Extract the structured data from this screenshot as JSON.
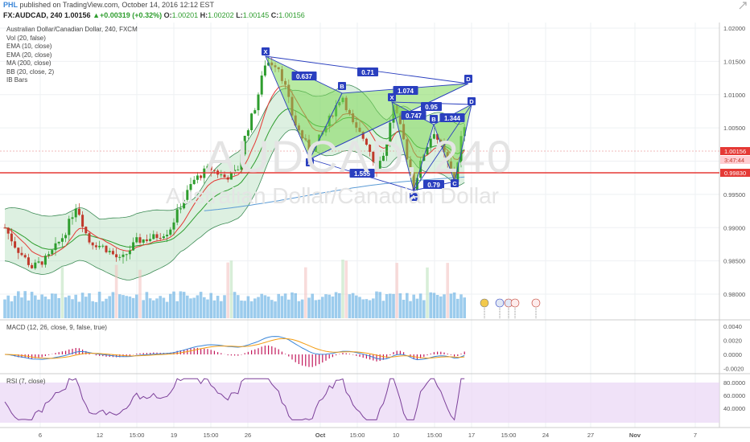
{
  "header": {
    "brand": "PHL",
    "published": " published on TradingView.com, October 14, 2016 12:12 EST",
    "symbol": "FX:AUDCAD, 240",
    "price": "1.00156",
    "change": "+0.00319 (+0.32%)",
    "o_label": "O:",
    "o_val": "1.00201",
    "h_label": "H:",
    "h_val": "1.00202",
    "l_label": "L:",
    "l_val": "1.00145",
    "c_label": "C:",
    "c_val": "1.00156"
  },
  "legend": {
    "title": "Australian Dollar/Canadian Dollar, 240, FXCM",
    "items": [
      "Vol (20, false)",
      "EMA (10, close)",
      "EMA (20, close)",
      "MA (200, close)",
      "BB (20, close, 2)",
      "IB Bars"
    ]
  },
  "watermark": {
    "ticker": "AUDCAD, 240",
    "name": "Australian Dollar/Canadian Dollar"
  },
  "panes": {
    "macd_label": "MACD (12, 26, close, 9, false, true)",
    "rsi_label": "RSI (7, close)"
  },
  "colors": {
    "up": "#2e9d2e",
    "down": "#c0392b",
    "pattern_fill": "#7ed957",
    "pattern_line": "#2a3fbf",
    "support": "#e53935",
    "bb_fill": "#9fd3a8",
    "volume": "#4aa3df",
    "macd": "#3a86d8",
    "signal": "#f39c12",
    "hist": "#c2185b",
    "rsi": "#7b3f99",
    "rsi_band": "#ead6f5"
  },
  "chart_data": [
    {
      "type": "candlestick",
      "title": "Australian Dollar/Canadian Dollar, 240, FXCM",
      "y_ticks": [
        "1.02000",
        "1.01500",
        "1.01000",
        "1.00500",
        "1.00000",
        "0.99500",
        "0.99000",
        "0.98500",
        "0.98000"
      ],
      "x_ticks": [
        "6",
        "12",
        "15:00",
        "19",
        "15:00",
        "26",
        "Oct",
        "15:00",
        "10",
        "15:00",
        "17",
        "15:00",
        "24",
        "27",
        "Nov",
        "7"
      ],
      "price_labels": {
        "last": "1.00156",
        "countdown": "3:47:44",
        "support": "0.99830"
      },
      "ylim": [
        0.9772,
        1.0213
      ],
      "pattern_points": [
        {
          "label": "X",
          "value": 1.0158
        },
        {
          "label": "A",
          "value": 1.0015
        },
        {
          "label": "B",
          "value": 1.0101
        },
        {
          "label": "D",
          "value": 1.0115
        },
        {
          "label": "X",
          "value": 1.0086
        },
        {
          "label": "A",
          "value": 0.996
        },
        {
          "label": "B",
          "value": 1.0046
        },
        {
          "label": "C",
          "value": 0.9969
        },
        {
          "label": "D",
          "value": 1.0081
        }
      ],
      "ratios": [
        "0.637",
        "0.71",
        "1.074",
        "0.95",
        "0.747",
        "1.344",
        "1.555",
        "0.79"
      ]
    },
    {
      "type": "line",
      "title": "MACD (12, 26, close, 9, false, true)",
      "y_ticks": [
        "0.0040",
        "0.0020",
        "0.0000",
        "-0.0020"
      ],
      "ylim": [
        -0.0036,
        0.0048
      ]
    },
    {
      "type": "line",
      "title": "RSI (7, close)",
      "y_ticks": [
        "80.0000",
        "60.0000",
        "40.0000"
      ],
      "ylim": [
        20,
        88
      ],
      "band": [
        30,
        70
      ]
    }
  ]
}
